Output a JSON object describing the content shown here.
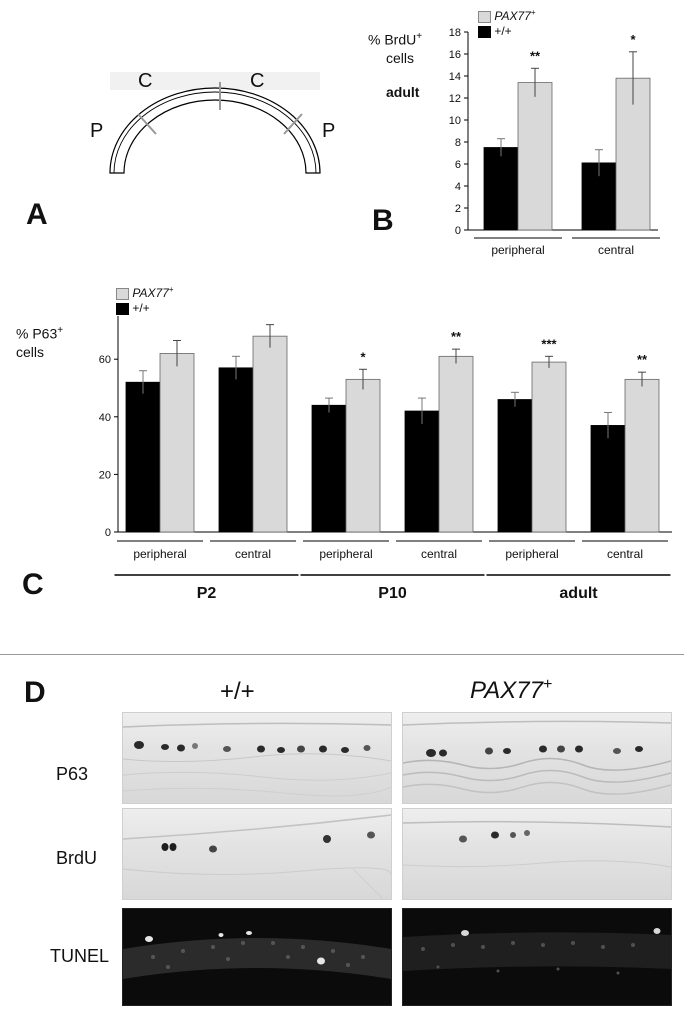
{
  "panels": {
    "a": {
      "letter": "A",
      "label_c1": "C",
      "label_c2": "C",
      "label_p1": "P",
      "label_p2": "P"
    },
    "b": {
      "letter": "B",
      "ylabel": "% BrdU+ cells",
      "ylabel_main": "% BrdU",
      "ylabel_sup": "+",
      "ylabel_sub": "cells",
      "stage": "adult"
    },
    "c": {
      "letter": "C",
      "ylabel_main": "% P63",
      "ylabel_sup": "+",
      "ylabel_sub": "cells"
    },
    "d": {
      "letter": "D",
      "col_wt": "+/+",
      "col_pax_main": "PAX77",
      "col_pax_sup": "+",
      "rows": [
        "P63",
        "BrdU",
        "TUNEL"
      ]
    }
  },
  "legend": {
    "pax_main": "PAX77",
    "pax_sup": "+",
    "wt": "+/+",
    "pax_color": "#d9d9d9",
    "wt_color": "#000000"
  },
  "chart_data": [
    {
      "type": "bar",
      "panel": "B",
      "categories": [
        "peripheral",
        "central"
      ],
      "series": [
        {
          "name": "+/+",
          "values": [
            7.5,
            6.1
          ],
          "errors": [
            0.8,
            1.2
          ],
          "color": "#000000"
        },
        {
          "name": "PAX77+",
          "values": [
            13.4,
            13.8
          ],
          "errors": [
            1.3,
            2.4
          ],
          "color": "#d9d9d9"
        }
      ],
      "significance": [
        "**",
        "*"
      ],
      "ylim": [
        0,
        18
      ],
      "yticks": [
        "0",
        "2",
        "4",
        "6",
        "8",
        "10",
        "12",
        "14",
        "16",
        "18"
      ],
      "legend_position": "top"
    },
    {
      "type": "bar",
      "panel": "C",
      "categories": [
        "peripheral",
        "central",
        "peripheral",
        "central",
        "peripheral",
        "central"
      ],
      "groups": [
        "P2",
        "P10",
        "adult"
      ],
      "series": [
        {
          "name": "+/+",
          "values": [
            52,
            57,
            44,
            42,
            46,
            37
          ],
          "errors": [
            4,
            4,
            2.5,
            4.5,
            2.5,
            4.5
          ],
          "color": "#000000"
        },
        {
          "name": "PAX77+",
          "values": [
            62,
            68,
            53,
            61,
            59,
            53
          ],
          "errors": [
            4.5,
            4,
            3.5,
            2.5,
            2,
            2.5
          ],
          "color": "#d9d9d9"
        }
      ],
      "significance": [
        "",
        "",
        "*",
        "**",
        "***",
        "**"
      ],
      "ylim": [
        0,
        75
      ],
      "yticks": [
        "0",
        "20",
        "40",
        "60"
      ],
      "legend_position": "top-left"
    }
  ]
}
